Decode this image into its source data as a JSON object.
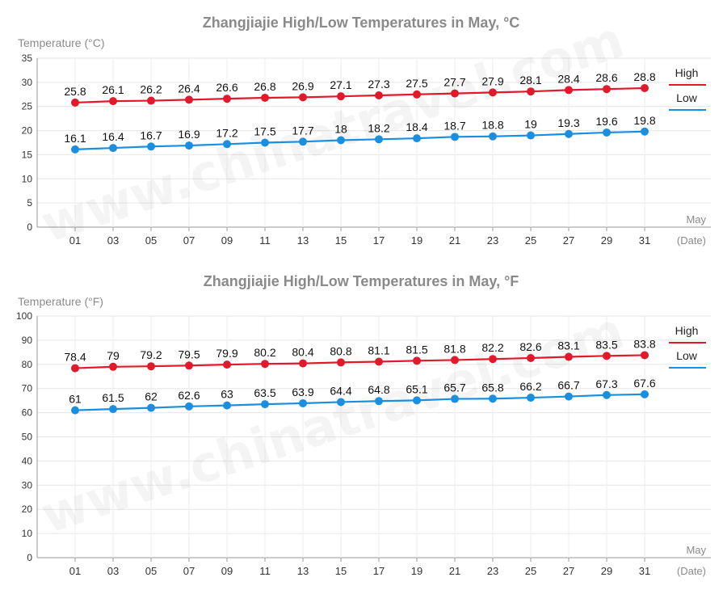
{
  "chart_data": [
    {
      "type": "line",
      "title": "Zhangjiajie High/Low Temperatures in May, °C",
      "ylabel": "Temperature (°C)",
      "xlabel_top": "May",
      "xlabel_bottom": "(Date)",
      "ylim": [
        0,
        35
      ],
      "yticks": [
        0,
        5,
        10,
        15,
        20,
        25,
        30,
        35
      ],
      "categories": [
        "01",
        "03",
        "05",
        "07",
        "09",
        "11",
        "13",
        "15",
        "17",
        "19",
        "21",
        "23",
        "25",
        "27",
        "29",
        "31"
      ],
      "grid": true,
      "legend_position": "right",
      "series": [
        {
          "name": "High",
          "color": "#e01a2b",
          "values": [
            25.8,
            26.1,
            26.2,
            26.4,
            26.6,
            26.8,
            26.9,
            27.1,
            27.3,
            27.5,
            27.7,
            27.9,
            28.1,
            28.4,
            28.6,
            28.8
          ]
        },
        {
          "name": "Low",
          "color": "#1a8fe0",
          "values": [
            16.1,
            16.4,
            16.7,
            16.9,
            17.2,
            17.5,
            17.7,
            18,
            18.2,
            18.4,
            18.7,
            18.8,
            19,
            19.3,
            19.6,
            19.8
          ]
        }
      ],
      "watermark": "www.chinatravel.com"
    },
    {
      "type": "line",
      "title": "Zhangjiajie High/Low Temperatures in May, °F",
      "ylabel": "Temperature (°F)",
      "xlabel_top": "May",
      "xlabel_bottom": "(Date)",
      "ylim": [
        0,
        100
      ],
      "yticks": [
        0,
        10,
        20,
        30,
        40,
        50,
        60,
        70,
        80,
        90,
        100
      ],
      "categories": [
        "01",
        "03",
        "05",
        "07",
        "09",
        "11",
        "13",
        "15",
        "17",
        "19",
        "21",
        "23",
        "25",
        "27",
        "29",
        "31"
      ],
      "grid": true,
      "legend_position": "right",
      "series": [
        {
          "name": "High",
          "color": "#e01a2b",
          "values": [
            78.4,
            79,
            79.2,
            79.5,
            79.9,
            80.2,
            80.4,
            80.8,
            81.1,
            81.5,
            81.8,
            82.2,
            82.6,
            83.1,
            83.5,
            83.8
          ]
        },
        {
          "name": "Low",
          "color": "#1a8fe0",
          "values": [
            61,
            61.5,
            62,
            62.6,
            63,
            63.5,
            63.9,
            64.4,
            64.8,
            65.1,
            65.7,
            65.8,
            66.2,
            66.7,
            67.3,
            67.6
          ]
        }
      ],
      "watermark": "www.chinatravel.com"
    }
  ]
}
